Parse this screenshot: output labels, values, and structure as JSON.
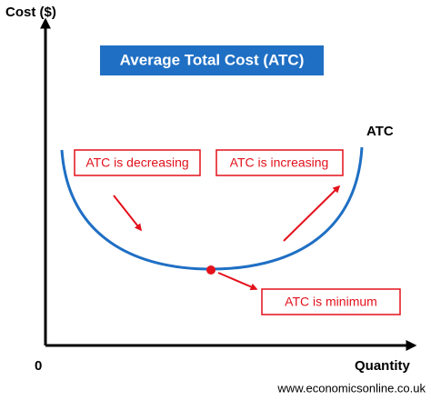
{
  "axes": {
    "y_label": "Cost ($)",
    "x_label": "Quantity",
    "origin": "0"
  },
  "title": "Average Total Cost (ATC)",
  "curve_label": "ATC",
  "annotations": [
    "ATC is decreasing",
    "ATC is increasing",
    "ATC is minimum"
  ],
  "source": "www.economicsonline.co.uk"
}
